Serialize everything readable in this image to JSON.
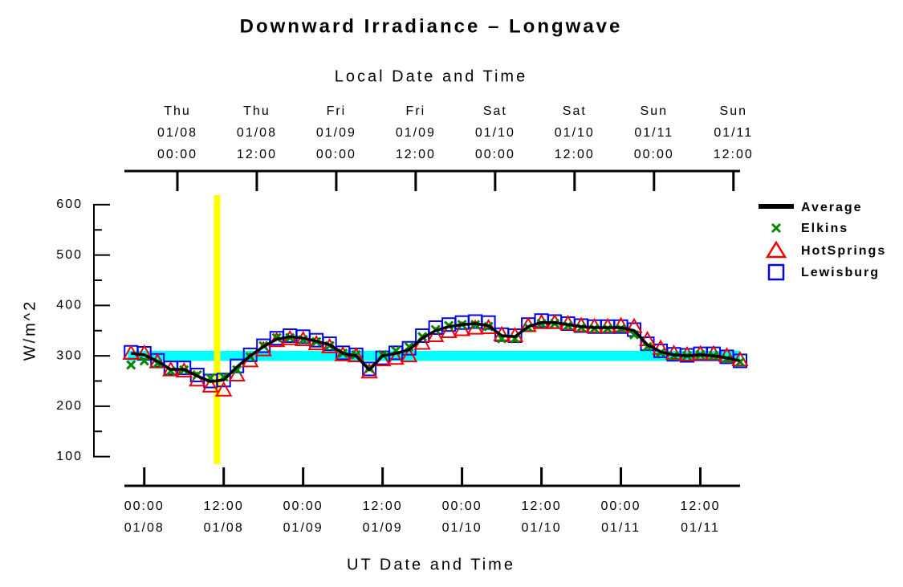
{
  "chart_data": {
    "type": "line",
    "title": "Downward Irradiance – Longwave",
    "x2label": "Local Date and Time",
    "xlabel": "UT Date and Time",
    "ylabel": "W/m^2",
    "xlim": [
      "01/07 21:00",
      "01/11 18:00"
    ],
    "ylim": [
      85,
      619
    ],
    "yticks": [
      100,
      200,
      300,
      400,
      500,
      600
    ],
    "yminorticks": [
      150,
      250,
      350,
      450,
      550
    ],
    "xticks": [
      {
        "value": "01/08 00:00",
        "label": [
          "00:00",
          "01/08"
        ]
      },
      {
        "value": "01/08 12:00",
        "label": [
          "12:00",
          "01/08"
        ]
      },
      {
        "value": "01/09 00:00",
        "label": [
          "00:00",
          "01/09"
        ]
      },
      {
        "value": "01/09 12:00",
        "label": [
          "12:00",
          "01/09"
        ]
      },
      {
        "value": "01/10 00:00",
        "label": [
          "00:00",
          "01/10"
        ]
      },
      {
        "value": "01/10 12:00",
        "label": [
          "12:00",
          "01/10"
        ]
      },
      {
        "value": "01/11 00:00",
        "label": [
          "00:00",
          "01/11"
        ]
      },
      {
        "value": "01/11 12:00",
        "label": [
          "12:00",
          "01/11"
        ]
      }
    ],
    "x2ticks": [
      {
        "value": "01/08 05:00",
        "label": [
          "Thu",
          "01/08",
          "00:00"
        ]
      },
      {
        "value": "01/08 17:00",
        "label": [
          "Thu",
          "01/08",
          "12:00"
        ]
      },
      {
        "value": "01/09 05:00",
        "label": [
          "Fri",
          "01/09",
          "00:00"
        ]
      },
      {
        "value": "01/09 17:00",
        "label": [
          "Fri",
          "01/09",
          "12:00"
        ]
      },
      {
        "value": "01/10 05:00",
        "label": [
          "Sat",
          "01/10",
          "00:00"
        ]
      },
      {
        "value": "01/10 17:00",
        "label": [
          "Sat",
          "01/10",
          "12:00"
        ]
      },
      {
        "value": "01/11 05:00",
        "label": [
          "Sun",
          "01/11",
          "00:00"
        ]
      },
      {
        "value": "01/11 17:00",
        "label": [
          "Sun",
          "01/11",
          "12:00"
        ]
      }
    ],
    "vline": {
      "x": "01/08 11:00",
      "color": "#ffff00"
    },
    "hband": {
      "y": [
        290,
        310
      ],
      "color": "#00ffff"
    },
    "legend": "right",
    "x": [
      "01/07 22:00",
      "01/08 00:00",
      "01/08 02:00",
      "01/08 04:00",
      "01/08 06:00",
      "01/08 08:00",
      "01/08 10:00",
      "01/08 12:00",
      "01/08 14:00",
      "01/08 16:00",
      "01/08 18:00",
      "01/08 20:00",
      "01/08 22:00",
      "01/09 00:00",
      "01/09 02:00",
      "01/09 04:00",
      "01/09 06:00",
      "01/09 08:00",
      "01/09 10:00",
      "01/09 12:00",
      "01/09 14:00",
      "01/09 16:00",
      "01/09 18:00",
      "01/09 20:00",
      "01/09 22:00",
      "01/10 00:00",
      "01/10 02:00",
      "01/10 04:00",
      "01/10 06:00",
      "01/10 08:00",
      "01/10 10:00",
      "01/10 12:00",
      "01/10 14:00",
      "01/10 16:00",
      "01/10 18:00",
      "01/10 20:00",
      "01/10 22:00",
      "01/11 00:00",
      "01/11 02:00",
      "01/11 04:00",
      "01/11 06:00",
      "01/11 08:00",
      "01/11 10:00",
      "01/11 12:00",
      "01/11 14:00",
      "01/11 16:00",
      "01/11 18:00"
    ],
    "series": [
      {
        "name": "Lewisburg",
        "color": "#0000ee",
        "marker": "square",
        "values": [
          307,
          305,
          291,
          276,
          276,
          262,
          250,
          252,
          280,
          302,
          320,
          335,
          340,
          338,
          331,
          324,
          306,
          302,
          274,
          296,
          306,
          315,
          340,
          356,
          362,
          366,
          368,
          366,
          342,
          340,
          362,
          370,
          368,
          364,
          360,
          358,
          358,
          358,
          352,
          324,
          310,
          303,
          301,
          304,
          304,
          298,
          290
        ]
      },
      {
        "name": "HotSprings",
        "color": "#ee0000",
        "marker": "triangle",
        "values": [
          305,
          305,
          288,
          272,
          270,
          252,
          240,
          232,
          262,
          290,
          312,
          330,
          334,
          332,
          324,
          318,
          302,
          300,
          268,
          292,
          295,
          300,
          325,
          340,
          348,
          352,
          355,
          356,
          342,
          340,
          360,
          366,
          366,
          364,
          360,
          358,
          358,
          360,
          358,
          332,
          315,
          305,
          302,
          304,
          304,
          300,
          292
        ]
      },
      {
        "name": "Elkins",
        "color": "#008800",
        "marker": "x",
        "values": [
          282,
          290,
          285,
          270,
          272,
          262,
          256,
          258,
          272,
          298,
          320,
          336,
          336,
          332,
          328,
          320,
          305,
          302,
          275,
          302,
          310,
          318,
          338,
          352,
          360,
          362,
          362,
          358,
          334,
          334,
          356,
          364,
          364,
          360,
          356,
          354,
          354,
          354,
          342,
          318,
          306,
          300,
          300,
          302,
          300,
          294,
          288
        ]
      },
      {
        "name": "Average",
        "color": "#000000",
        "marker": "line",
        "values": [
          305,
          302,
          289,
          273,
          273,
          260,
          249,
          252,
          278,
          300,
          318,
          333,
          338,
          335,
          329,
          322,
          305,
          300,
          272,
          300,
          305,
          312,
          335,
          350,
          358,
          362,
          364,
          360,
          340,
          338,
          358,
          366,
          366,
          362,
          358,
          356,
          356,
          356,
          350,
          322,
          308,
          302,
          300,
          302,
          300,
          296,
          290
        ]
      }
    ]
  }
}
